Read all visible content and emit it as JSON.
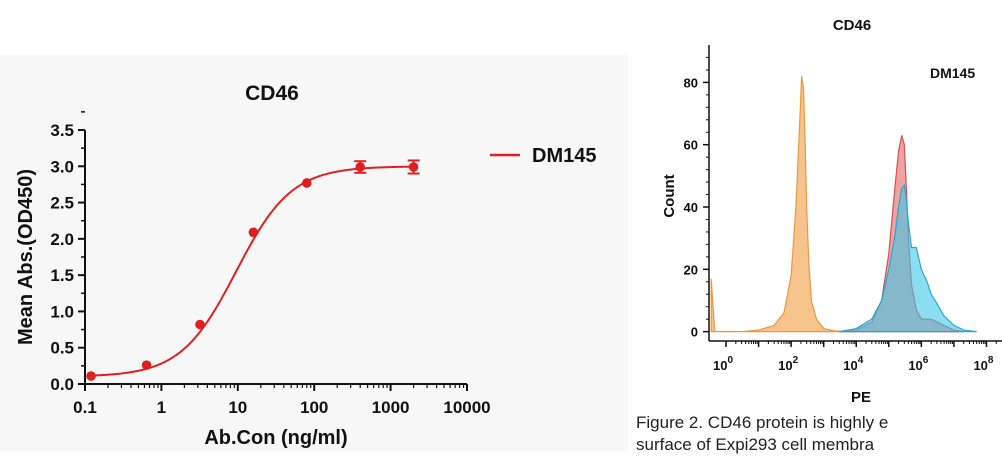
{
  "chart_data": [
    {
      "type": "line",
      "title": "CD46",
      "xlabel": "Ab.Con (ng/ml)",
      "ylabel": "Mean Abs.(OD450)",
      "xscale": "log",
      "xlim": [
        0.1,
        10000
      ],
      "ylim": [
        0,
        3.5
      ],
      "x_ticks": [
        "0.1",
        "1",
        "10",
        "100",
        "1000",
        "10000"
      ],
      "y_ticks": [
        "0.0",
        "0.5",
        "1.0",
        "1.5",
        "2.0",
        "2.5",
        "3.0",
        "3.5"
      ],
      "legend_position": "right",
      "series": [
        {
          "name": "DM145",
          "color": "#e02020",
          "x": [
            0.12,
            0.64,
            3.2,
            16,
            80,
            400,
            2000
          ],
          "y": [
            0.11,
            0.26,
            0.82,
            2.09,
            2.77,
            2.99,
            2.99
          ],
          "error": [
            0.02,
            0.02,
            0.02,
            0.03,
            0.03,
            0.08,
            0.09
          ],
          "fit": {
            "bottom": 0.1,
            "top": 3.0,
            "ec50": 9.5,
            "hill": 1.2
          }
        }
      ]
    },
    {
      "type": "area",
      "title": "CD46",
      "xlabel": "PE",
      "ylabel": "Count",
      "xscale": "log",
      "xlim": [
        0.3,
        300000000
      ],
      "ylim": [
        -3,
        92
      ],
      "x_ticks": [
        "10^0",
        "10^2",
        "10^4",
        "10^6",
        "10^8"
      ],
      "y_ticks": [
        "0",
        "20",
        "40",
        "60",
        "80"
      ],
      "annotation": "DM145",
      "series": [
        {
          "color": "#f5b26b",
          "x": [
            0.35,
            0.45,
            0.6,
            1,
            3,
            10,
            30,
            60,
            100,
            140,
            180,
            210,
            240,
            270,
            300,
            350,
            420,
            600,
            1000,
            2000,
            5000,
            10000
          ],
          "y": [
            17,
            0,
            0,
            0,
            0,
            0.5,
            2,
            6,
            18,
            40,
            65,
            82,
            78,
            60,
            40,
            22,
            10,
            4,
            1,
            0.3,
            0,
            0
          ]
        },
        {
          "color": "#e87a7a",
          "x": [
            3000,
            10000,
            30000,
            60000,
            100000,
            150000,
            200000,
            250000,
            300000,
            350000,
            400000,
            500000,
            700000,
            1000000,
            2000000,
            5000000,
            10000000,
            20000000
          ],
          "y": [
            0,
            0.5,
            3,
            10,
            25,
            45,
            58,
            63,
            60,
            45,
            30,
            15,
            7,
            4,
            4,
            2,
            0.5,
            0
          ]
        },
        {
          "color": "#3ec6e6",
          "x": [
            3000,
            10000,
            30000,
            60000,
            100000,
            150000,
            200000,
            250000,
            300000,
            350000,
            400000,
            500000,
            700000,
            1000000,
            1500000,
            2000000,
            3000000,
            5000000,
            10000000,
            20000000,
            50000000
          ],
          "y": [
            0,
            1,
            4,
            10,
            20,
            30,
            40,
            46,
            47,
            42,
            35,
            27,
            27,
            20,
            16,
            12,
            9,
            5,
            2,
            0.5,
            0
          ]
        }
      ]
    }
  ],
  "caption": {
    "line1": "Figure 2. CD46 protein is highly e",
    "line2": "surface of Expi293 cell membra"
  }
}
